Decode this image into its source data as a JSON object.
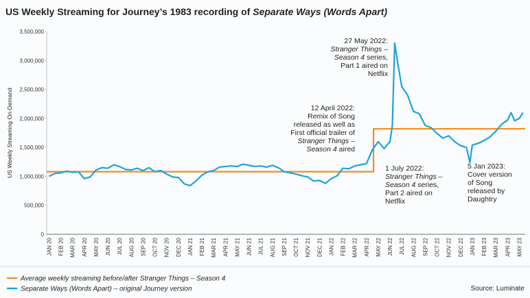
{
  "chart_data": {
    "type": "line",
    "title": [
      "US Weekly Streaming for Journey’s 1983 recording of ",
      {
        "text": "Separate Ways (Words Apart)",
        "style": "italic"
      }
    ],
    "y_label": "US Weekly Streaming On-Demand",
    "source": "Source: Luminate",
    "xlim": [
      -0.2,
      40.5
    ],
    "xticks": [
      {
        "value": 0,
        "label": "JAN 20"
      },
      {
        "value": 1,
        "label": "FEB 20"
      },
      {
        "value": 2,
        "label": "MAR 20"
      },
      {
        "value": 3,
        "label": "APR 20"
      },
      {
        "value": 4,
        "label": "MAY 20"
      },
      {
        "value": 5,
        "label": "JUN 20"
      },
      {
        "value": 6,
        "label": "JUL 20"
      },
      {
        "value": 7,
        "label": "AUG 20"
      },
      {
        "value": 8,
        "label": "SEP 20"
      },
      {
        "value": 9,
        "label": "OCT 20"
      },
      {
        "value": 10,
        "label": "NOV 20"
      },
      {
        "value": 11,
        "label": "DEC 20"
      },
      {
        "value": 12,
        "label": "JAN 21"
      },
      {
        "value": 13,
        "label": "FEB 21"
      },
      {
        "value": 14,
        "label": "MAR 21"
      },
      {
        "value": 15,
        "label": "APR 21"
      },
      {
        "value": 16,
        "label": "MAY 21"
      },
      {
        "value": 17,
        "label": "JUN 21"
      },
      {
        "value": 18,
        "label": "JUL 21"
      },
      {
        "value": 19,
        "label": "AUG 21"
      },
      {
        "value": 20,
        "label": "SEP 21"
      },
      {
        "value": 21,
        "label": "OCT 21"
      },
      {
        "value": 22,
        "label": "NOV 21"
      },
      {
        "value": 23,
        "label": "DEC 21"
      },
      {
        "value": 24,
        "label": "JAN 22"
      },
      {
        "value": 25,
        "label": "FEB 22"
      },
      {
        "value": 26,
        "label": "MAR 22"
      },
      {
        "value": 27,
        "label": "APR 22"
      },
      {
        "value": 28,
        "label": "MAY 22"
      },
      {
        "value": 29,
        "label": "JUN 22"
      },
      {
        "value": 30,
        "label": "JUL 22"
      },
      {
        "value": 31,
        "label": "AUG 22"
      },
      {
        "value": 32,
        "label": "SEP 22"
      },
      {
        "value": 33,
        "label": "OCT 22"
      },
      {
        "value": 34,
        "label": "NOV 22"
      },
      {
        "value": 35,
        "label": "DEC 22"
      },
      {
        "value": 36,
        "label": "JAN 23"
      },
      {
        "value": 37,
        "label": "FEB 23"
      },
      {
        "value": 38,
        "label": "MAR 23"
      },
      {
        "value": 39,
        "label": "APR 23"
      },
      {
        "value": 40,
        "label": "MAY 23"
      }
    ],
    "ylim": [
      0,
      3500000
    ],
    "yticks": [
      0,
      {
        "value": 500000,
        "label": "500,000"
      },
      {
        "value": 1000000,
        "label": "1,000,000"
      },
      {
        "value": 1500000,
        "label": "1,500,000"
      },
      {
        "value": 2000000,
        "label": "2,000,000"
      },
      {
        "value": 2500000,
        "label": "2,500,000"
      },
      {
        "value": 3000000,
        "label": "3,000,000"
      },
      {
        "value": 3500000,
        "label": "3,500,000"
      }
    ],
    "series": [
      {
        "name": "Average weekly streaming before/after Stranger Things – Season 4",
        "color": "#f28c28",
        "x": [
          -0.2,
          27.6,
          27.6,
          40.5
        ],
        "values": [
          1080000,
          1080000,
          1820000,
          1820000
        ]
      },
      {
        "name": "Separate Ways (Words Apart) – original Journey version",
        "color": "#1aa3dc",
        "x": [
          0,
          0.5,
          1,
          1.5,
          2,
          2.5,
          3,
          3.5,
          4,
          4.5,
          5,
          5.5,
          6,
          6.5,
          7,
          7.5,
          8,
          8.5,
          9,
          9.5,
          10,
          10.5,
          11,
          11.5,
          12,
          12.5,
          13,
          13.5,
          14,
          14.5,
          15,
          15.5,
          16,
          16.5,
          17,
          17.5,
          18,
          18.5,
          19,
          19.5,
          20,
          20.5,
          21,
          21.5,
          22,
          22.5,
          23,
          23.5,
          24,
          24.5,
          25,
          25.5,
          26,
          26.5,
          27,
          27.5,
          28,
          28.5,
          29,
          29.2,
          29.4,
          29.7,
          30,
          30.5,
          31,
          31.5,
          32,
          32.5,
          33,
          33.5,
          34,
          34.5,
          35,
          35.5,
          35.8,
          36,
          36.5,
          37,
          37.5,
          38,
          38.5,
          39,
          39.3,
          39.6,
          40,
          40.3
        ],
        "values": [
          1000000,
          1050000,
          1060000,
          1090000,
          1070000,
          1080000,
          960000,
          990000,
          1110000,
          1150000,
          1140000,
          1200000,
          1170000,
          1120000,
          1110000,
          1140000,
          1100000,
          1150000,
          1080000,
          1100000,
          1040000,
          990000,
          980000,
          870000,
          840000,
          920000,
          1020000,
          1080000,
          1100000,
          1160000,
          1170000,
          1180000,
          1170000,
          1210000,
          1190000,
          1170000,
          1180000,
          1160000,
          1190000,
          1150000,
          1080000,
          1060000,
          1040000,
          1010000,
          990000,
          920000,
          930000,
          880000,
          960000,
          1010000,
          1140000,
          1130000,
          1180000,
          1200000,
          1220000,
          1460000,
          1600000,
          1480000,
          1600000,
          1880000,
          3300000,
          2900000,
          2550000,
          2400000,
          2120000,
          2080000,
          1880000,
          1840000,
          1740000,
          1660000,
          1700000,
          1600000,
          1530000,
          1500000,
          1240000,
          1540000,
          1570000,
          1620000,
          1680000,
          1780000,
          1900000,
          1970000,
          2100000,
          1960000,
          2000000,
          2100000
        ]
      }
    ],
    "annotations": [
      [
        [
          "27 May 2022:"
        ],
        [
          {
            "text": "Stranger Things –",
            "style": "italic"
          }
        ],
        [
          {
            "text": "Season 4",
            "style": "italic"
          },
          " series,"
        ],
        [
          "Part 1 aired on"
        ],
        [
          "Netflix"
        ]
      ],
      [
        [
          "12 April 2022:"
        ],
        [
          "Remix of Song"
        ],
        [
          "released as well as"
        ],
        [
          "First official trailer of"
        ],
        [
          {
            "text": "Stranger Things –",
            "style": "italic"
          }
        ],
        [
          {
            "text": "Season 4",
            "style": "italic"
          },
          " aired"
        ]
      ],
      [
        [
          "1 July 2022:"
        ],
        [
          {
            "text": "Stranger Things –",
            "style": "italic"
          }
        ],
        [
          {
            "text": "Season 4",
            "style": "italic"
          },
          " series,"
        ],
        [
          "Part 2 aired on"
        ],
        [
          "Netflix"
        ]
      ],
      [
        [
          "5 Jan 2023:"
        ],
        [
          "Cover version"
        ],
        [
          "of Song"
        ],
        [
          "released by"
        ],
        [
          "Daughtry"
        ]
      ]
    ]
  }
}
